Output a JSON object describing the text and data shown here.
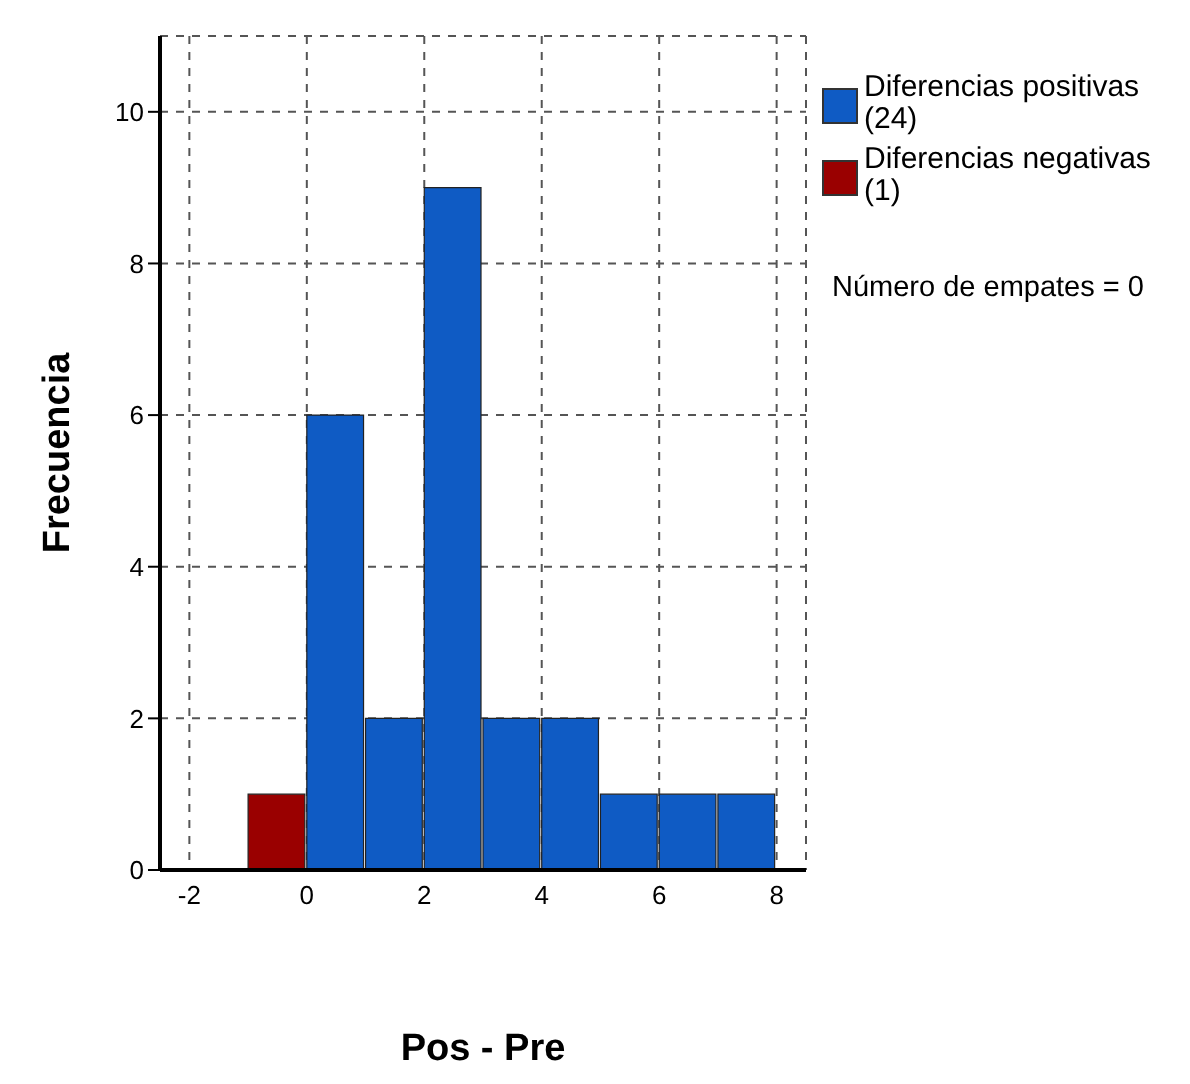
{
  "chart_data": {
    "type": "histogram",
    "xlabel": "Pos - Pre",
    "ylabel": "Frecuencia",
    "bins": [
      -1,
      0,
      1,
      2,
      3,
      4,
      5,
      6,
      7,
      8
    ],
    "series": [
      {
        "name": "Diferencias positivas (24)",
        "color": "#0f5bc4",
        "values": [
          0,
          6,
          2,
          9,
          2,
          2,
          1,
          1,
          1
        ]
      },
      {
        "name": "Diferencias negativas (1)",
        "color": "#9a0000",
        "values": [
          1,
          0,
          0,
          0,
          0,
          0,
          0,
          0,
          0
        ]
      }
    ],
    "xlim": [
      -2.5,
      8.5
    ],
    "xticks": [
      -2,
      0,
      2,
      4,
      6,
      8
    ],
    "ylim": [
      0,
      11
    ],
    "yticks": [
      0,
      2,
      4,
      6,
      8,
      10
    ],
    "grid": true,
    "legend": "top right",
    "annotations": [
      "Número de empates = 0"
    ]
  }
}
